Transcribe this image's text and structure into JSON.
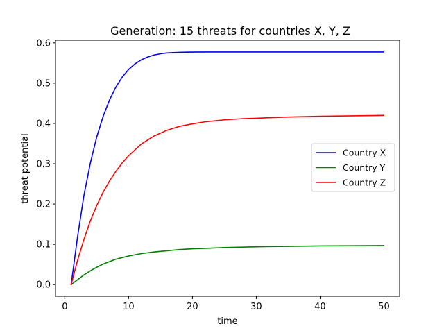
{
  "chart_data": {
    "type": "line",
    "title": "Generation: 15 threats for countries X, Y, Z",
    "xlabel": "time",
    "ylabel": "threat potential",
    "xlim": [
      -1.45,
      52.45
    ],
    "ylim": [
      -0.0289,
      0.6066
    ],
    "xticks": [
      0,
      10,
      20,
      30,
      40,
      50
    ],
    "yticks": [
      0.0,
      0.1,
      0.2,
      0.3,
      0.4,
      0.5,
      0.6
    ],
    "ytick_labels": [
      "0.0",
      "0.1",
      "0.2",
      "0.3",
      "0.4",
      "0.5",
      "0.6"
    ],
    "grid": false,
    "legend_position": "center-right",
    "series": [
      {
        "name": "Country X",
        "color": "#0000ff",
        "x": [
          1,
          2,
          3,
          4,
          5,
          6,
          7,
          8,
          9,
          10,
          11,
          12,
          13,
          14,
          15,
          16,
          17,
          18,
          19,
          20,
          22,
          25,
          30,
          35,
          40,
          45,
          50
        ],
        "y": [
          0.0,
          0.118,
          0.221,
          0.301,
          0.366,
          0.417,
          0.458,
          0.49,
          0.515,
          0.534,
          0.548,
          0.558,
          0.565,
          0.57,
          0.573,
          0.575,
          0.576,
          0.5765,
          0.577,
          0.5772,
          0.5774,
          0.5775,
          0.5775,
          0.5775,
          0.5775,
          0.5775,
          0.5775
        ]
      },
      {
        "name": "Country Y",
        "color": "#008000",
        "x": [
          1,
          2,
          3,
          4,
          5,
          6,
          7,
          8,
          9,
          10,
          12,
          14,
          16,
          18,
          20,
          22,
          25,
          30,
          35,
          40,
          45,
          50
        ],
        "y": [
          0.0,
          0.012,
          0.024,
          0.034,
          0.043,
          0.051,
          0.057,
          0.063,
          0.067,
          0.071,
          0.077,
          0.081,
          0.084,
          0.087,
          0.089,
          0.09,
          0.092,
          0.094,
          0.095,
          0.096,
          0.0965,
          0.097
        ]
      },
      {
        "name": "Country Z",
        "color": "#ff0000",
        "x": [
          1,
          2,
          3,
          4,
          5,
          6,
          7,
          8,
          9,
          10,
          12,
          14,
          16,
          18,
          20,
          22,
          25,
          28,
          30,
          35,
          40,
          45,
          50
        ],
        "y": [
          0.0,
          0.06,
          0.112,
          0.158,
          0.196,
          0.229,
          0.257,
          0.281,
          0.302,
          0.32,
          0.349,
          0.369,
          0.383,
          0.393,
          0.399,
          0.404,
          0.409,
          0.412,
          0.413,
          0.416,
          0.418,
          0.419,
          0.42
        ]
      }
    ]
  }
}
